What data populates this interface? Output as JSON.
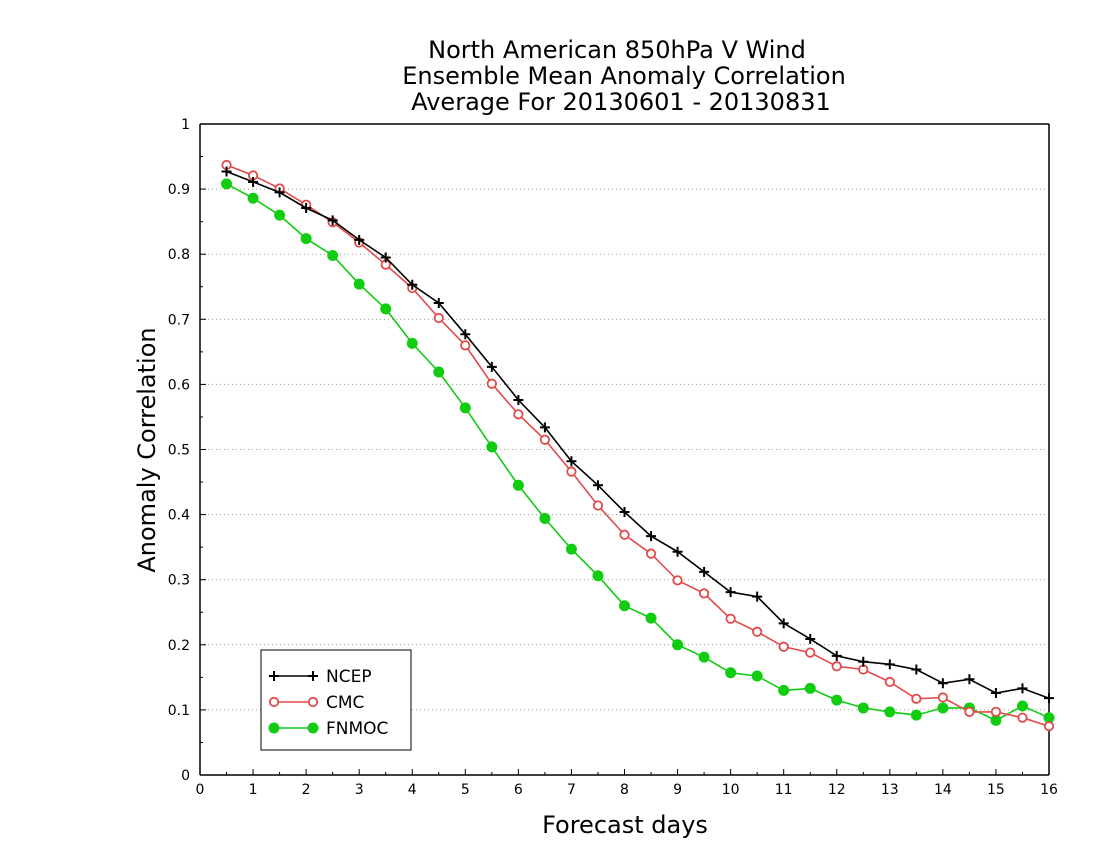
{
  "chart_data": {
    "type": "line",
    "title": [
      "North American 850hPa V Wind",
      "Ensemble Mean Anomaly Correlation",
      "Average For 20130601 - 20130831"
    ],
    "xlabel": "Forecast days",
    "ylabel": "Anomaly Correlation",
    "xlim": [
      0,
      16
    ],
    "ylim": [
      0,
      1
    ],
    "x_ticks": [
      0,
      1,
      2,
      3,
      4,
      5,
      6,
      7,
      8,
      9,
      10,
      11,
      12,
      13,
      14,
      15,
      16
    ],
    "x_tick_labels": [
      "0",
      "1",
      "2",
      "3",
      "4",
      "5",
      "6",
      "7",
      "8",
      "9",
      "10",
      "11",
      "12",
      "13",
      "14",
      "15",
      "16"
    ],
    "y_ticks": [
      0,
      0.1,
      0.2,
      0.3,
      0.4,
      0.5,
      0.6,
      0.7,
      0.8,
      0.9,
      1
    ],
    "y_tick_labels": [
      "0",
      "0.1",
      "0.2",
      "0.3",
      "0.4",
      "0.5",
      "0.6",
      "0.7",
      "0.8",
      "0.9",
      "1"
    ],
    "grid": "horizontal dotted",
    "legend_position": "bottom-left",
    "x": [
      0.5,
      1,
      1.5,
      2,
      2.5,
      3,
      3.5,
      4,
      4.5,
      5,
      5.5,
      6,
      6.5,
      7,
      7.5,
      8,
      8.5,
      9,
      9.5,
      10,
      10.5,
      11,
      11.5,
      12,
      12.5,
      13,
      13.5,
      14,
      14.5,
      15,
      15.5,
      16
    ],
    "series": [
      {
        "name": "NCEP",
        "color": "#000000",
        "marker": "plus",
        "values": [
          0.927,
          0.911,
          0.895,
          0.871,
          0.852,
          0.822,
          0.795,
          0.753,
          0.725,
          0.677,
          0.627,
          0.576,
          0.534,
          0.482,
          0.445,
          0.404,
          0.367,
          0.343,
          0.312,
          0.281,
          0.274,
          0.233,
          0.209,
          0.183,
          0.174,
          0.17,
          0.162,
          0.141,
          0.147,
          0.126,
          0.133,
          0.118
        ]
      },
      {
        "name": "CMC",
        "color": "#e24a4a",
        "marker": "open-circle",
        "values": [
          0.937,
          0.921,
          0.901,
          0.876,
          0.849,
          0.818,
          0.784,
          0.748,
          0.702,
          0.66,
          0.601,
          0.554,
          0.515,
          0.466,
          0.414,
          0.369,
          0.34,
          0.299,
          0.279,
          0.24,
          0.22,
          0.197,
          0.188,
          0.167,
          0.162,
          0.143,
          0.117,
          0.119,
          0.097,
          0.097,
          0.088,
          0.075
        ]
      },
      {
        "name": "FNMOC",
        "color": "#11cc11",
        "marker": "filled-circle",
        "values": [
          0.908,
          0.886,
          0.86,
          0.824,
          0.798,
          0.754,
          0.716,
          0.663,
          0.619,
          0.564,
          0.504,
          0.445,
          0.394,
          0.347,
          0.306,
          0.26,
          0.241,
          0.2,
          0.181,
          0.157,
          0.152,
          0.13,
          0.133,
          0.115,
          0.103,
          0.097,
          0.092,
          0.103,
          0.103,
          0.084,
          0.106,
          0.088
        ]
      }
    ]
  }
}
